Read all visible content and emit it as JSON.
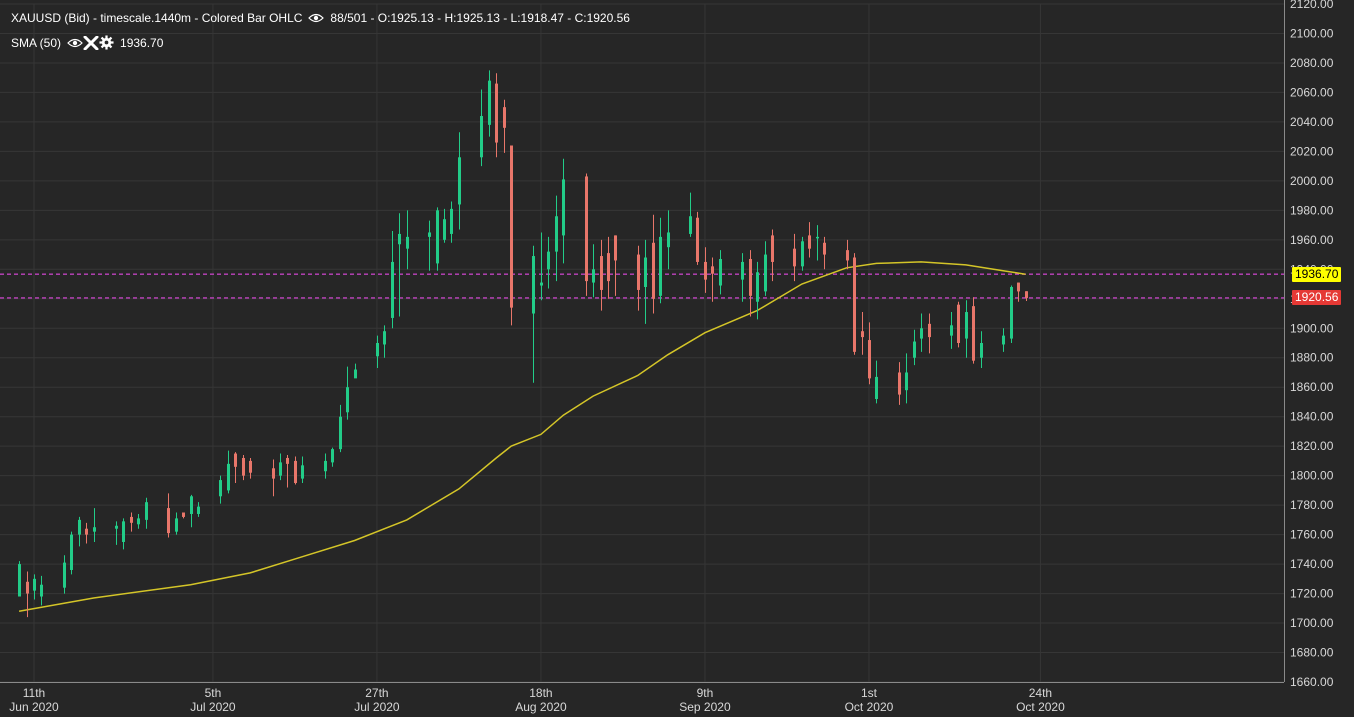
{
  "legend": {
    "instrument_line": "XAUUSD (Bid) - timescale.1440m - Colored Bar OHLC",
    "ohlc_text": "88/501 - O:1925.13 - H:1925.13 - L:1918.47 - C:1920.56",
    "sma_label": "SMA (50)",
    "sma_value": "1936.70",
    "icons": [
      "eye-icon",
      "close-icon",
      "gear-icon"
    ]
  },
  "price_tags": {
    "sma": {
      "text": "1936.70",
      "color": "#ffff00",
      "value": 1936.7
    },
    "last": {
      "text": "1920.56",
      "color": "#e53935",
      "value": 1920.56
    }
  },
  "colors": {
    "background": "#262626",
    "grid": "#363636",
    "up": "#22cc88",
    "down": "#e8766a",
    "sma_line": "#d4c528",
    "price_line": "#c043c0"
  },
  "chart_data": {
    "type": "ohlc",
    "instrument": "XAUUSD (Bid)",
    "timescale": "1440m",
    "ylim": [
      1660,
      2120
    ],
    "y_ticks": [
      "1660.00",
      "1680.00",
      "1700.00",
      "1720.00",
      "1740.00",
      "1760.00",
      "1780.00",
      "1800.00",
      "1820.00",
      "1840.00",
      "1860.00",
      "1880.00",
      "1900.00",
      "1920.00",
      "1940.00",
      "1960.00",
      "1980.00",
      "2000.00",
      "2020.00",
      "2040.00",
      "2060.00",
      "2080.00",
      "2100.00",
      "2120.00"
    ],
    "x_ticks": [
      {
        "day": "11th",
        "month": "Jun 2020",
        "date": "2020-06-11"
      },
      {
        "day": "5th",
        "month": "Jul 2020",
        "date": "2020-07-05"
      },
      {
        "day": "27th",
        "month": "Jul 2020",
        "date": "2020-07-27"
      },
      {
        "day": "18th",
        "month": "Aug 2020",
        "date": "2020-08-18"
      },
      {
        "day": "9th",
        "month": "Sep 2020",
        "date": "2020-09-09"
      },
      {
        "day": "1st",
        "month": "Oct 2020",
        "date": "2020-10-01"
      },
      {
        "day": "24th",
        "month": "Oct 2020",
        "date": "2020-10-24"
      }
    ],
    "bars": [
      {
        "date": "2020-06-09",
        "o": 1718,
        "h": 1742,
        "l": 1718,
        "c": 1740
      },
      {
        "date": "2020-06-10",
        "o": 1728,
        "h": 1735,
        "l": 1704,
        "c": 1720
      },
      {
        "date": "2020-06-11",
        "o": 1722,
        "h": 1733,
        "l": 1716,
        "c": 1730
      },
      {
        "date": "2020-06-12",
        "o": 1718,
        "h": 1732,
        "l": 1712,
        "c": 1726
      },
      {
        "date": "2020-06-15",
        "o": 1724,
        "h": 1746,
        "l": 1720,
        "c": 1741
      },
      {
        "date": "2020-06-16",
        "o": 1736,
        "h": 1762,
        "l": 1733,
        "c": 1760
      },
      {
        "date": "2020-06-17",
        "o": 1760,
        "h": 1772,
        "l": 1752,
        "c": 1770
      },
      {
        "date": "2020-06-18",
        "o": 1764,
        "h": 1768,
        "l": 1754,
        "c": 1760
      },
      {
        "date": "2020-06-19",
        "o": 1762,
        "h": 1778,
        "l": 1755,
        "c": 1765
      },
      {
        "date": "2020-06-22",
        "o": 1764,
        "h": 1769,
        "l": 1753,
        "c": 1766
      },
      {
        "date": "2020-06-23",
        "o": 1755,
        "h": 1771,
        "l": 1750,
        "c": 1769
      },
      {
        "date": "2020-06-24",
        "o": 1772,
        "h": 1775,
        "l": 1762,
        "c": 1768
      },
      {
        "date": "2020-06-25",
        "o": 1767,
        "h": 1774,
        "l": 1764,
        "c": 1771
      },
      {
        "date": "2020-06-26",
        "o": 1770,
        "h": 1785,
        "l": 1764,
        "c": 1782
      },
      {
        "date": "2020-06-29",
        "o": 1778,
        "h": 1788,
        "l": 1758,
        "c": 1761
      },
      {
        "date": "2020-06-30",
        "o": 1762,
        "h": 1775,
        "l": 1760,
        "c": 1771
      },
      {
        "date": "2020-07-01",
        "o": 1775,
        "h": 1775,
        "l": 1771,
        "c": 1772
      },
      {
        "date": "2020-07-02",
        "o": 1774,
        "h": 1787,
        "l": 1765,
        "c": 1786
      },
      {
        "date": "2020-07-03",
        "o": 1774,
        "h": 1782,
        "l": 1772,
        "c": 1779
      },
      {
        "date": "2020-07-06",
        "o": 1786,
        "h": 1800,
        "l": 1781,
        "c": 1797
      },
      {
        "date": "2020-07-07",
        "o": 1790,
        "h": 1817,
        "l": 1788,
        "c": 1808
      },
      {
        "date": "2020-07-08",
        "o": 1815,
        "h": 1816,
        "l": 1795,
        "c": 1806
      },
      {
        "date": "2020-07-09",
        "o": 1812,
        "h": 1814,
        "l": 1797,
        "c": 1800
      },
      {
        "date": "2020-07-10",
        "o": 1810,
        "h": 1812,
        "l": 1798,
        "c": 1802
      },
      {
        "date": "2020-07-13",
        "o": 1805,
        "h": 1811,
        "l": 1786,
        "c": 1798
      },
      {
        "date": "2020-07-14",
        "o": 1800,
        "h": 1815,
        "l": 1797,
        "c": 1809
      },
      {
        "date": "2020-07-15",
        "o": 1812,
        "h": 1814,
        "l": 1792,
        "c": 1808
      },
      {
        "date": "2020-07-16",
        "o": 1810,
        "h": 1813,
        "l": 1794,
        "c": 1795
      },
      {
        "date": "2020-07-17",
        "o": 1798,
        "h": 1813,
        "l": 1795,
        "c": 1807
      },
      {
        "date": "2020-07-20",
        "o": 1803,
        "h": 1815,
        "l": 1798,
        "c": 1810
      },
      {
        "date": "2020-07-21",
        "o": 1809,
        "h": 1819,
        "l": 1806,
        "c": 1818
      },
      {
        "date": "2020-07-22",
        "o": 1818,
        "h": 1848,
        "l": 1816,
        "c": 1840
      },
      {
        "date": "2020-07-23",
        "o": 1843,
        "h": 1874,
        "l": 1838,
        "c": 1860
      },
      {
        "date": "2020-07-24",
        "o": 1866,
        "h": 1876,
        "l": 1867,
        "c": 1872
      },
      {
        "date": "2020-07-27",
        "o": 1881,
        "h": 1895,
        "l": 1873,
        "c": 1890
      },
      {
        "date": "2020-07-28",
        "o": 1889,
        "h": 1902,
        "l": 1880,
        "c": 1898
      },
      {
        "date": "2020-07-29",
        "o": 1907,
        "h": 1966,
        "l": 1900,
        "c": 1945
      },
      {
        "date": "2020-07-30",
        "o": 1957,
        "h": 1978,
        "l": 1908,
        "c": 1964
      },
      {
        "date": "2020-07-31",
        "o": 1954,
        "h": 1980,
        "l": 1940,
        "c": 1962
      },
      {
        "date": "2020-08-03",
        "o": 1962,
        "h": 1973,
        "l": 1939,
        "c": 1965
      },
      {
        "date": "2020-08-04",
        "o": 1944,
        "h": 1982,
        "l": 1939,
        "c": 1980
      },
      {
        "date": "2020-08-05",
        "o": 1960,
        "h": 1981,
        "l": 1958,
        "c": 1974
      },
      {
        "date": "2020-08-06",
        "o": 1964,
        "h": 1986,
        "l": 1958,
        "c": 1981
      },
      {
        "date": "2020-08-07",
        "o": 1984,
        "h": 2033,
        "l": 1967,
        "c": 2016
      },
      {
        "date": "2020-08-10",
        "o": 2016,
        "h": 2062,
        "l": 2010,
        "c": 2044
      },
      {
        "date": "2020-08-11",
        "o": 2038,
        "h": 2075,
        "l": 2030,
        "c": 2068
      },
      {
        "date": "2020-08-12",
        "o": 2066,
        "h": 2073,
        "l": 2016,
        "c": 2026
      },
      {
        "date": "2020-08-13",
        "o": 2050,
        "h": 2055,
        "l": 2019,
        "c": 2036
      },
      {
        "date": "2020-08-14",
        "o": 2024,
        "h": 2024,
        "l": 1902,
        "c": 1914
      },
      {
        "date": "2020-08-17",
        "o": 1910,
        "h": 1956,
        "l": 1863,
        "c": 1949
      },
      {
        "date": "2020-08-18",
        "o": 1929,
        "h": 1965,
        "l": 1919,
        "c": 1931
      },
      {
        "date": "2020-08-19",
        "o": 1940,
        "h": 1962,
        "l": 1927,
        "c": 1952
      },
      {
        "date": "2020-08-20",
        "o": 1952,
        "h": 1990,
        "l": 1932,
        "c": 1976
      },
      {
        "date": "2020-08-21",
        "o": 1963,
        "h": 2015,
        "l": 1944,
        "c": 2001
      },
      {
        "date": "2020-08-24",
        "o": 2003,
        "h": 2005,
        "l": 1922,
        "c": 1932
      },
      {
        "date": "2020-08-25",
        "o": 1931,
        "h": 1957,
        "l": 1921,
        "c": 1940
      },
      {
        "date": "2020-08-26",
        "o": 1949,
        "h": 1960,
        "l": 1912,
        "c": 1926
      },
      {
        "date": "2020-08-27",
        "o": 1951,
        "h": 1962,
        "l": 1920,
        "c": 1932
      },
      {
        "date": "2020-08-28",
        "o": 1963,
        "h": 1963,
        "l": 1922,
        "c": 1946
      },
      {
        "date": "2020-08-31",
        "o": 1950,
        "h": 1956,
        "l": 1912,
        "c": 1926
      },
      {
        "date": "2020-09-01",
        "o": 1928,
        "h": 1960,
        "l": 1903,
        "c": 1948
      },
      {
        "date": "2020-09-02",
        "o": 1958,
        "h": 1977,
        "l": 1910,
        "c": 1920
      },
      {
        "date": "2020-09-03",
        "o": 1922,
        "h": 1975,
        "l": 1917,
        "c": 1962
      },
      {
        "date": "2020-09-04",
        "o": 1955,
        "h": 1980,
        "l": 1940,
        "c": 1965
      },
      {
        "date": "2020-09-07",
        "o": 1964,
        "h": 1992,
        "l": 1962,
        "c": 1976
      },
      {
        "date": "2020-09-08",
        "o": 1975,
        "h": 1979,
        "l": 1943,
        "c": 1945
      },
      {
        "date": "2020-09-09",
        "o": 1945,
        "h": 1955,
        "l": 1924,
        "c": 1933
      },
      {
        "date": "2020-09-10",
        "o": 1942,
        "h": 1948,
        "l": 1918,
        "c": 1937
      },
      {
        "date": "2020-09-11",
        "o": 1929,
        "h": 1953,
        "l": 1923,
        "c": 1947
      },
      {
        "date": "2020-09-14",
        "o": 1933,
        "h": 1951,
        "l": 1918,
        "c": 1945
      },
      {
        "date": "2020-09-15",
        "o": 1947,
        "h": 1953,
        "l": 1908,
        "c": 1922
      },
      {
        "date": "2020-09-16",
        "o": 1918,
        "h": 1945,
        "l": 1906,
        "c": 1938
      },
      {
        "date": "2020-09-17",
        "o": 1925,
        "h": 1959,
        "l": 1922,
        "c": 1950
      },
      {
        "date": "2020-09-18",
        "o": 1963,
        "h": 1967,
        "l": 1932,
        "c": 1945
      },
      {
        "date": "2020-09-21",
        "o": 1954,
        "h": 1964,
        "l": 1932,
        "c": 1942
      },
      {
        "date": "2020-09-22",
        "o": 1942,
        "h": 1962,
        "l": 1939,
        "c": 1959
      },
      {
        "date": "2020-09-23",
        "o": 1963,
        "h": 1972,
        "l": 1948,
        "c": 1954
      },
      {
        "date": "2020-09-24",
        "o": 1962,
        "h": 1970,
        "l": 1946,
        "c": 1962
      },
      {
        "date": "2020-09-25",
        "o": 1958,
        "h": 1962,
        "l": 1940,
        "c": 1950
      },
      {
        "date": "2020-09-28",
        "o": 1953,
        "h": 1960,
        "l": 1940,
        "c": 1946
      },
      {
        "date": "2020-09-29",
        "o": 1948,
        "h": 1951,
        "l": 1882,
        "c": 1884
      },
      {
        "date": "2020-09-30",
        "o": 1898,
        "h": 1911,
        "l": 1882,
        "c": 1894
      },
      {
        "date": "2020-10-01",
        "o": 1892,
        "h": 1904,
        "l": 1862,
        "c": 1866
      },
      {
        "date": "2020-10-02",
        "o": 1852,
        "h": 1878,
        "l": 1849,
        "c": 1867
      },
      {
        "date": "2020-10-05",
        "o": 1870,
        "h": 1877,
        "l": 1848,
        "c": 1855
      },
      {
        "date": "2020-10-06",
        "o": 1858,
        "h": 1883,
        "l": 1849,
        "c": 1870
      },
      {
        "date": "2020-10-07",
        "o": 1880,
        "h": 1899,
        "l": 1875,
        "c": 1891
      },
      {
        "date": "2020-10-08",
        "o": 1893,
        "h": 1910,
        "l": 1884,
        "c": 1900
      },
      {
        "date": "2020-10-09",
        "o": 1903,
        "h": 1910,
        "l": 1883,
        "c": 1894
      },
      {
        "date": "2020-10-12",
        "o": 1895,
        "h": 1911,
        "l": 1886,
        "c": 1902
      },
      {
        "date": "2020-10-13",
        "o": 1916,
        "h": 1918,
        "l": 1887,
        "c": 1890
      },
      {
        "date": "2020-10-14",
        "o": 1893,
        "h": 1919,
        "l": 1880,
        "c": 1911
      },
      {
        "date": "2020-10-15",
        "o": 1915,
        "h": 1921,
        "l": 1876,
        "c": 1878
      },
      {
        "date": "2020-10-16",
        "o": 1880,
        "h": 1898,
        "l": 1873,
        "c": 1890
      },
      {
        "date": "2020-10-19",
        "o": 1889,
        "h": 1900,
        "l": 1884,
        "c": 1895
      },
      {
        "date": "2020-10-20",
        "o": 1893,
        "h": 1929,
        "l": 1890,
        "c": 1928
      },
      {
        "date": "2020-10-21",
        "o": 1931,
        "h": 1931,
        "l": 1918,
        "c": 1925
      },
      {
        "date": "2020-10-22",
        "o": 1925.13,
        "h": 1925.13,
        "l": 1918.47,
        "c": 1920.56
      }
    ],
    "sma": {
      "name": "SMA (50)",
      "points": [
        {
          "date": "2020-06-09",
          "v": 1708
        },
        {
          "date": "2020-06-19",
          "v": 1717
        },
        {
          "date": "2020-07-02",
          "v": 1726
        },
        {
          "date": "2020-07-10",
          "v": 1734
        },
        {
          "date": "2020-07-17",
          "v": 1745
        },
        {
          "date": "2020-07-24",
          "v": 1756
        },
        {
          "date": "2020-07-31",
          "v": 1770
        },
        {
          "date": "2020-08-07",
          "v": 1791
        },
        {
          "date": "2020-08-12",
          "v": 1812
        },
        {
          "date": "2020-08-14",
          "v": 1820
        },
        {
          "date": "2020-08-18",
          "v": 1828
        },
        {
          "date": "2020-08-21",
          "v": 1841
        },
        {
          "date": "2020-08-25",
          "v": 1854
        },
        {
          "date": "2020-08-31",
          "v": 1868
        },
        {
          "date": "2020-09-04",
          "v": 1882
        },
        {
          "date": "2020-09-09",
          "v": 1897
        },
        {
          "date": "2020-09-16",
          "v": 1912
        },
        {
          "date": "2020-09-22",
          "v": 1930
        },
        {
          "date": "2020-09-28",
          "v": 1941
        },
        {
          "date": "2020-10-02",
          "v": 1944
        },
        {
          "date": "2020-10-08",
          "v": 1945
        },
        {
          "date": "2020-10-14",
          "v": 1943
        },
        {
          "date": "2020-10-19",
          "v": 1939
        },
        {
          "date": "2020-10-22",
          "v": 1936.7
        }
      ]
    },
    "horizontal_lines": [
      {
        "value": 1936.7,
        "label": "1936.70"
      },
      {
        "value": 1920.56,
        "label": "1920.56"
      }
    ]
  }
}
